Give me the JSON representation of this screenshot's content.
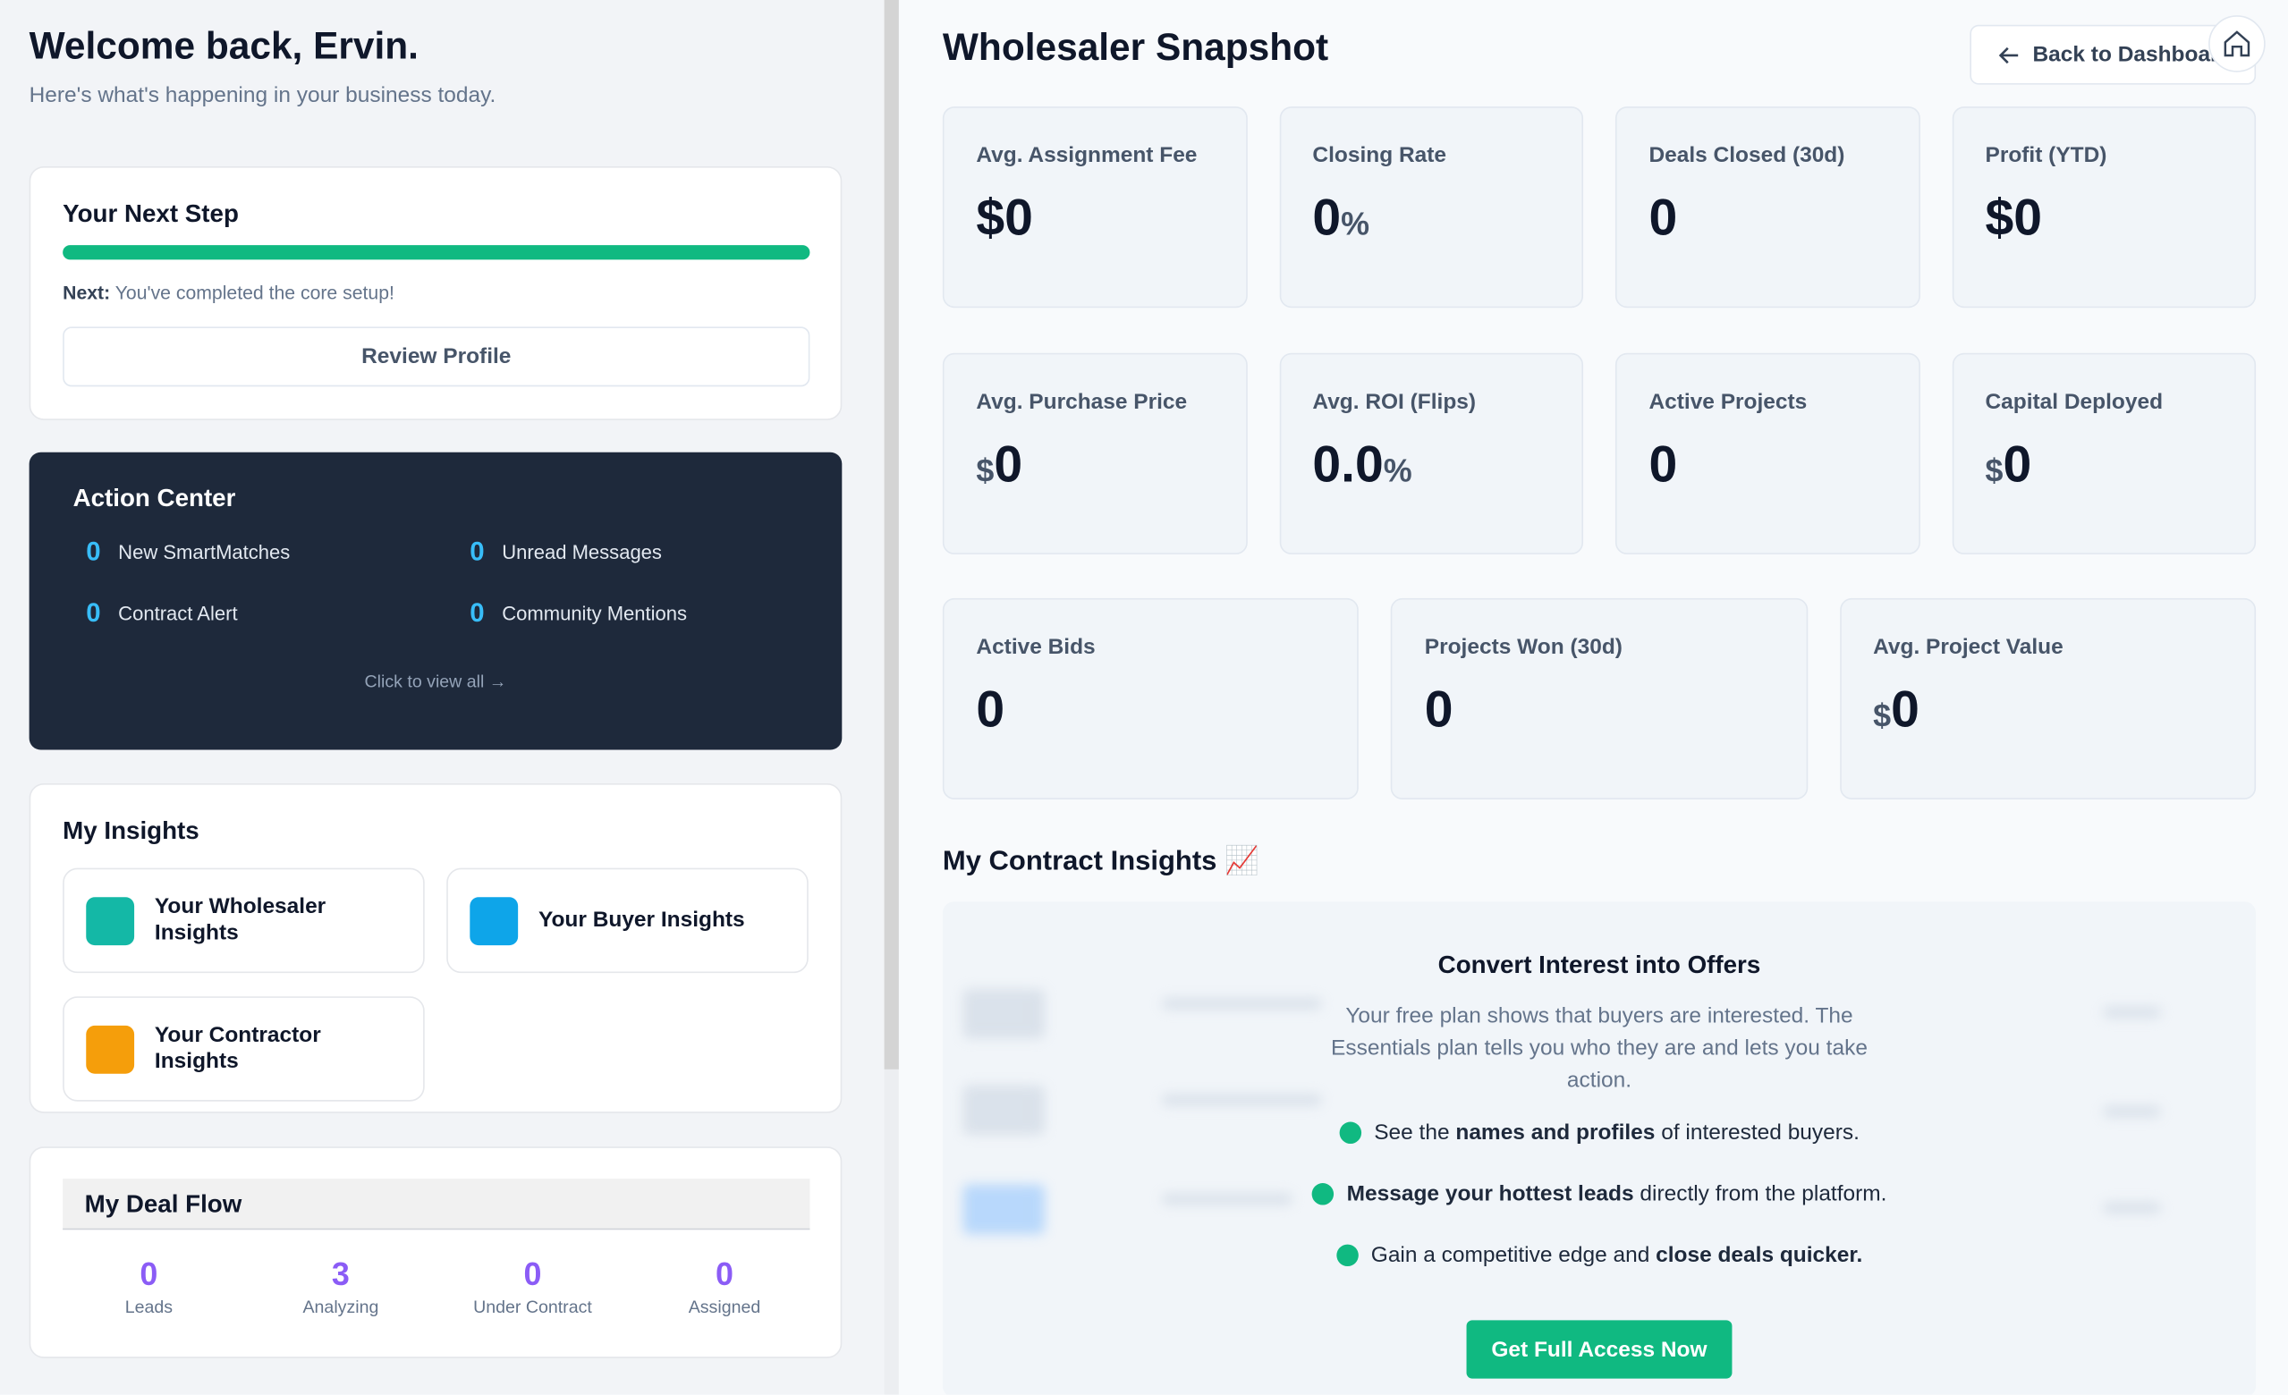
{
  "left": {
    "welcome": {
      "title": "Welcome back, Ervin.",
      "subtitle": "Here's what's happening in your business today."
    },
    "next_step": {
      "title": "Your Next Step",
      "next_label": "Next:",
      "next_text": "You've completed the core setup!",
      "button": "Review Profile"
    },
    "action_center": {
      "title": "Action Center",
      "items": [
        {
          "count": "0",
          "label": "New SmartMatches"
        },
        {
          "count": "0",
          "label": "Unread Messages"
        },
        {
          "count": "0",
          "label": "Contract Alert"
        },
        {
          "count": "0",
          "label": "Community Mentions"
        }
      ],
      "link": "Click to view all →"
    },
    "insights": {
      "title": "My Insights",
      "cards": [
        "Your Wholesaler Insights",
        "Your Buyer Insights",
        "Your Contractor Insights"
      ]
    },
    "deal_flow": {
      "title": "My Deal Flow",
      "stats": [
        {
          "value": "0",
          "label": "Leads"
        },
        {
          "value": "3",
          "label": "Analyzing"
        },
        {
          "value": "0",
          "label": "Under Contract"
        },
        {
          "value": "0",
          "label": "Assigned"
        }
      ]
    }
  },
  "right": {
    "title": "Wholesaler Snapshot",
    "back_button": "Back to Dashboard",
    "metric_rows": [
      [
        {
          "label": "Avg. Assignment Fee",
          "value": "$0"
        },
        {
          "label": "Closing Rate",
          "value": "0",
          "suffix": "%"
        },
        {
          "label": "Deals Closed (30d)",
          "value": "0"
        },
        {
          "label": "Profit (YTD)",
          "value": "$0"
        }
      ],
      [
        {
          "label": "Avg. Purchase Price",
          "prefix": "$",
          "value": "0"
        },
        {
          "label": "Avg. ROI (Flips)",
          "value": "0.0",
          "suffix": "%"
        },
        {
          "label": "Active Projects",
          "value": "0"
        },
        {
          "label": "Capital Deployed",
          "prefix": "$",
          "value": "0"
        }
      ],
      [
        {
          "label": "Active Bids",
          "value": "0"
        },
        {
          "label": "Projects Won (30d)",
          "value": "0"
        },
        {
          "label": "Avg. Project Value",
          "prefix": "$",
          "value": "0"
        }
      ]
    ],
    "contract_insights": {
      "title": "My Contract Insights 📈",
      "overlay": {
        "title": "Convert Interest into Offers",
        "text": "Your free plan shows that buyers are interested. The Essentials plan tells you who they are and lets you take action.",
        "bullets": [
          [
            {
              "t": "See the "
            },
            {
              "b": "names and profiles"
            },
            {
              "t": " of interested buyers."
            }
          ],
          [
            {
              "b": "Message your hottest leads"
            },
            {
              "t": " directly from the platform."
            }
          ],
          [
            {
              "t": "Gain a competitive edge and "
            },
            {
              "b": "close deals quicker."
            }
          ]
        ],
        "button": "Get Full Access Now"
      }
    }
  }
}
